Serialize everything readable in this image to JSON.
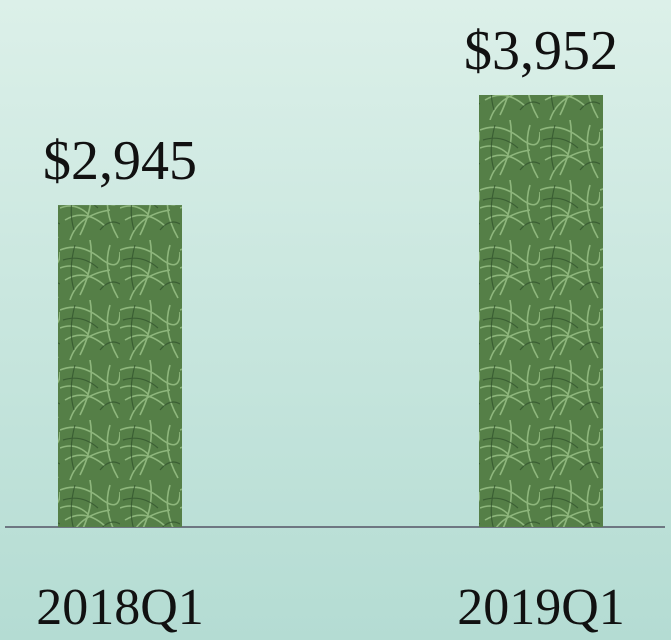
{
  "chart_data": {
    "type": "bar",
    "categories": [
      "2018Q1",
      "2019Q1"
    ],
    "values": [
      2945,
      3952
    ],
    "value_labels": [
      "$2,945",
      "$3,952"
    ],
    "color": "#557f47"
  }
}
